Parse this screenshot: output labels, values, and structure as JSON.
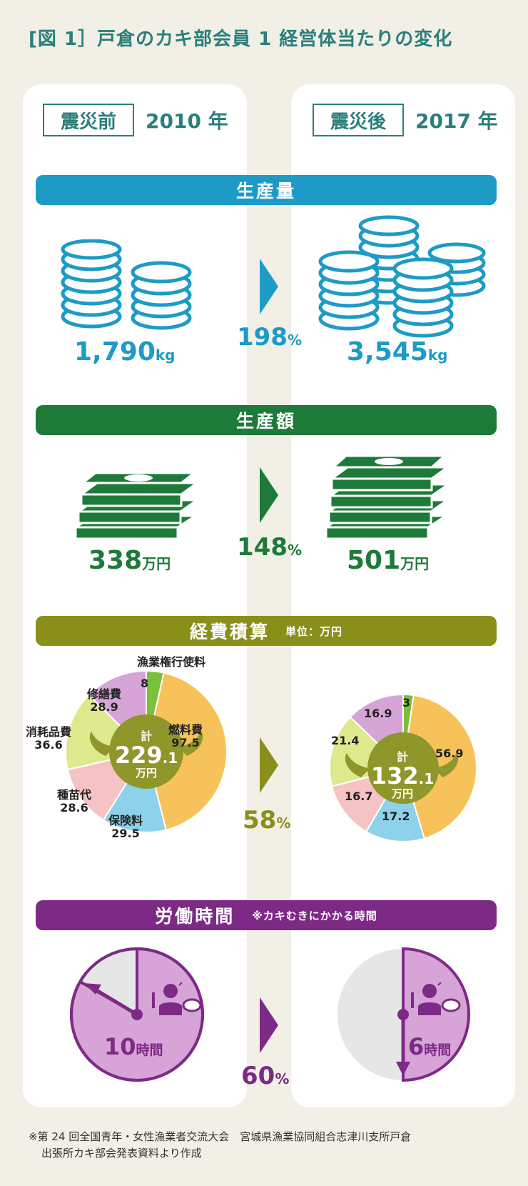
{
  "title": "[図 1］戸倉のカキ部会員 1 経営体当たりの変化",
  "before": {
    "label": "震災前",
    "year": "2010 年"
  },
  "after": {
    "label": "震災後",
    "year": "2017 年"
  },
  "colors": {
    "teal": "#2a7f7b",
    "blue": "#1d9bc6",
    "green": "#1d7a38",
    "olive": "#8a8f1a",
    "purple": "#7d2a86",
    "yellow": "#f8c25a",
    "lightblue": "#8dd1ea",
    "pink": "#f5c3c4",
    "lime": "#dde98c",
    "lavender": "#d6a4d6",
    "leafgreen": "#7bbf3c",
    "center": "#8f962a",
    "clockfill": "#d6a4d6",
    "clockbg": "#e6e6e6"
  },
  "production": {
    "heading": "生産量",
    "before_value": "1,790",
    "after_value": "3,545",
    "unit": "kg",
    "ratio": "198",
    "ratio_unit": "%"
  },
  "sales": {
    "heading": "生産額",
    "before_value": "338",
    "after_value": "501",
    "unit": "万円",
    "ratio": "148",
    "ratio_unit": "%"
  },
  "expenses": {
    "heading": "経費積算",
    "unit_note": "単位：万円",
    "ratio": "58",
    "ratio_unit": "%",
    "total_label": "計",
    "total_unit": "万円",
    "before_total_int": "229",
    "before_total_dec": ".1",
    "after_total_int": "132",
    "after_total_dec": ".1",
    "labels": {
      "fishing_rights": "漁業権行使料",
      "fuel": "燃料費",
      "insurance": "保険料",
      "seed": "種苗代",
      "consumables": "消耗品費",
      "repair": "修繕費"
    }
  },
  "labor": {
    "heading": "労働時間",
    "note": "※カキむきにかかる時間",
    "before_value": "10",
    "after_value": "6",
    "unit": "時間",
    "ratio": "60",
    "ratio_unit": "%"
  },
  "footnote": {
    "line1": "※第 24 回全国青年・女性漁業者交流大会　宮城県漁業協同組合志津川支所戸倉",
    "line2": "出張所カキ部会発表資料より作成"
  },
  "chart_data": [
    {
      "type": "pie",
      "title": "経費積算 2010 年",
      "total": 229.1,
      "categories": [
        "漁業権行使料",
        "燃料費",
        "保険料",
        "種苗代",
        "消耗品費",
        "修繕費"
      ],
      "values": [
        8,
        97.5,
        29.5,
        28.6,
        36.6,
        28.9
      ]
    },
    {
      "type": "pie",
      "title": "経費積算 2017 年",
      "total": 132.1,
      "categories": [
        "漁業権行使料",
        "燃料費",
        "保険料",
        "種苗代",
        "消耗品費",
        "修繕費"
      ],
      "values": [
        3,
        56.9,
        17.2,
        16.7,
        21.4,
        16.9
      ]
    }
  ]
}
